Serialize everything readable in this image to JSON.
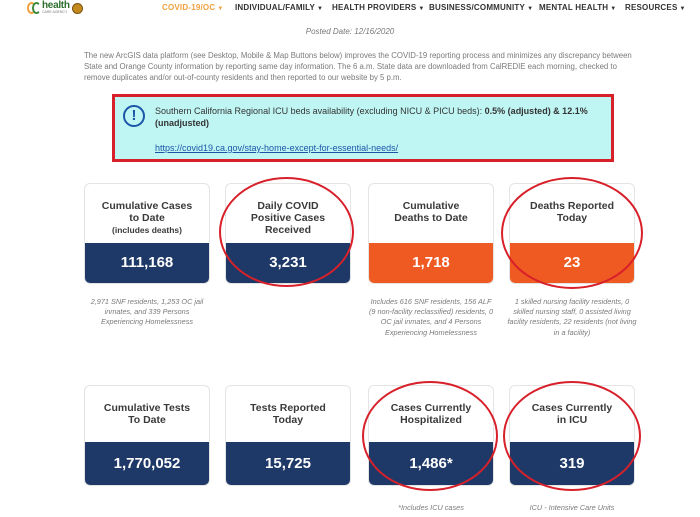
{
  "nav": {
    "logo_text": "health",
    "logo_subtext": "CARE AGENCY",
    "items": [
      {
        "label": "COVID-19/OC"
      },
      {
        "label": "INDIVIDUAL/FAMILY"
      },
      {
        "label": "HEALTH PROVIDERS"
      },
      {
        "label": "BUSINESS/COMMUNITY"
      },
      {
        "label": "MENTAL HEALTH"
      },
      {
        "label": "RESOURCES"
      }
    ],
    "active_color": "#f2a03d"
  },
  "posted": "Posted Date: 12/16/2020",
  "intro": "The new ArcGIS data platform (see Desktop, Mobile & Map Buttons below) improves the COVID-19 reporting process and minimizes any discrepancy between State and Orange County information by reporting same day information. The 6 a.m. State data are downloaded from CalREDIE each morning, checked to remove duplicates and/or out-of-county residents and then reported to our website by 5 p.m.",
  "alert": {
    "icon": "info-icon",
    "text_main": "Southern California Regional ICU beds availability (excluding NICU & PICU beds):",
    "text_values": "0.5% (adjusted) & 12.1% (unadjusted)",
    "link": "https://covid19.ca.gov/stay-home-except-for-essential-needs/"
  },
  "cards": [
    {
      "title": "Cumulative Cases to Date",
      "subtitle": "(includes deaths)",
      "value": "111,168",
      "note": "2,971 SNF residents, 1,253 OC jail inmates, and 339 Persons Experiencing Homelessness"
    },
    {
      "title": "Daily COVID Positive Cases Received",
      "value": "3,231"
    },
    {
      "title": "Cumulative Deaths to Date",
      "value": "1,718",
      "note": "Includes 616 SNF residents, 156 ALF (9 non-facility reclassified) residents, 0 OC jail inmates, and 4 Persons Experiencing Homelessness"
    },
    {
      "title": "Deaths Reported Today",
      "value": "23",
      "note": "1 skilled nursing facility residents, 0 skilled nursing staff, 0 assisted living facility residents, 22 residents (not living in a facility)"
    },
    {
      "title": "Cumulative Tests To Date",
      "value": "1,770,052"
    },
    {
      "title": "Tests Reported Today",
      "value": "15,725"
    },
    {
      "title": "Cases Currently Hospitalized",
      "value": "1,486*",
      "note": "*Includes ICU cases"
    },
    {
      "title": "Cases Currently in ICU",
      "value": "319",
      "note": "ICU - Intensive Care Units"
    }
  ],
  "colors": {
    "navy": "#1e3967",
    "orange": "#ef5a22",
    "highlight": "#d8202a",
    "alert_bg": "#bff6f3"
  }
}
